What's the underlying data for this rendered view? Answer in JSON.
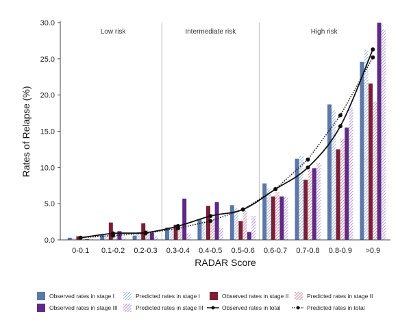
{
  "chart_data": {
    "type": "bar",
    "xlabel": "RADAR Score",
    "ylabel": "Rates of Relapse (%)",
    "ylim": [
      0,
      30
    ],
    "yticks": [
      "0.0",
      "5.0",
      "10.0",
      "15.0",
      "20.0",
      "25.0",
      "30.0"
    ],
    "grid": false,
    "legend_position": "bottom",
    "categories": [
      "0-0.1",
      "0.1-0.2",
      "0.2-0.3",
      "0.3-0.4",
      "0.4-0.5",
      "0.5-0.6",
      "0.6-0.7",
      "0.7-0.8",
      "0.8-0.9",
      ">0.9"
    ],
    "regions": [
      {
        "label": "Low risk",
        "from": 0,
        "to": 2
      },
      {
        "label": "Intermediate risk",
        "from": 3,
        "to": 5
      },
      {
        "label": "High risk",
        "from": 6,
        "to": 9
      }
    ],
    "series": [
      {
        "name": "Observed rates in stage I",
        "kind": "bar",
        "pattern": "solid",
        "color": "#5b78a8",
        "values": [
          0.3,
          0.8,
          0.6,
          1.7,
          2.9,
          4.8,
          7.8,
          11.2,
          18.7,
          24.6
        ]
      },
      {
        "name": "Predicted rates in stage I",
        "kind": "bar",
        "pattern": "hatched",
        "color": "#9fb6d8",
        "values": [
          0.3,
          0.7,
          0.8,
          1.6,
          2.6,
          4.4,
          7.1,
          11.6,
          17.9,
          26.2
        ]
      },
      {
        "name": "Observed rates in stage II",
        "kind": "bar",
        "pattern": "solid",
        "color": "#7a1f38",
        "values": [
          0.5,
          2.4,
          2.3,
          2.1,
          4.7,
          2.6,
          6.0,
          8.3,
          12.5,
          21.6
        ]
      },
      {
        "name": "Predicted rates in stage II",
        "kind": "bar",
        "pattern": "hatched",
        "color": "#c98a98",
        "values": [
          0.5,
          0.9,
          1.3,
          1.8,
          2.8,
          4.0,
          6.6,
          9.7,
          13.9,
          19.1
        ]
      },
      {
        "name": "Observed rates in stage III",
        "kind": "bar",
        "pattern": "solid",
        "color": "#5e2a86",
        "values": [
          0.1,
          1.2,
          1.0,
          5.7,
          5.2,
          1.1,
          6.0,
          9.9,
          15.5,
          30.0
        ]
      },
      {
        "name": "Predicted rates in stage III",
        "kind": "bar",
        "pattern": "hatched",
        "color": "#b497d8",
        "values": [
          0.1,
          0.3,
          0.5,
          0.9,
          1.6,
          3.3,
          6.0,
          10.6,
          18.3,
          29.1
        ]
      },
      {
        "name": "Observed rates in total",
        "kind": "line",
        "style": "solid",
        "color": "#111111",
        "values": [
          0.3,
          0.9,
          1.0,
          1.9,
          3.3,
          4.2,
          7.0,
          10.0,
          15.7,
          26.3
        ]
      },
      {
        "name": "Predicted rates in total",
        "kind": "line",
        "style": "dotted",
        "color": "#111111",
        "values": [
          0.3,
          0.6,
          0.9,
          1.6,
          2.6,
          4.2,
          7.0,
          11.1,
          17.2,
          25.2
        ]
      }
    ]
  }
}
